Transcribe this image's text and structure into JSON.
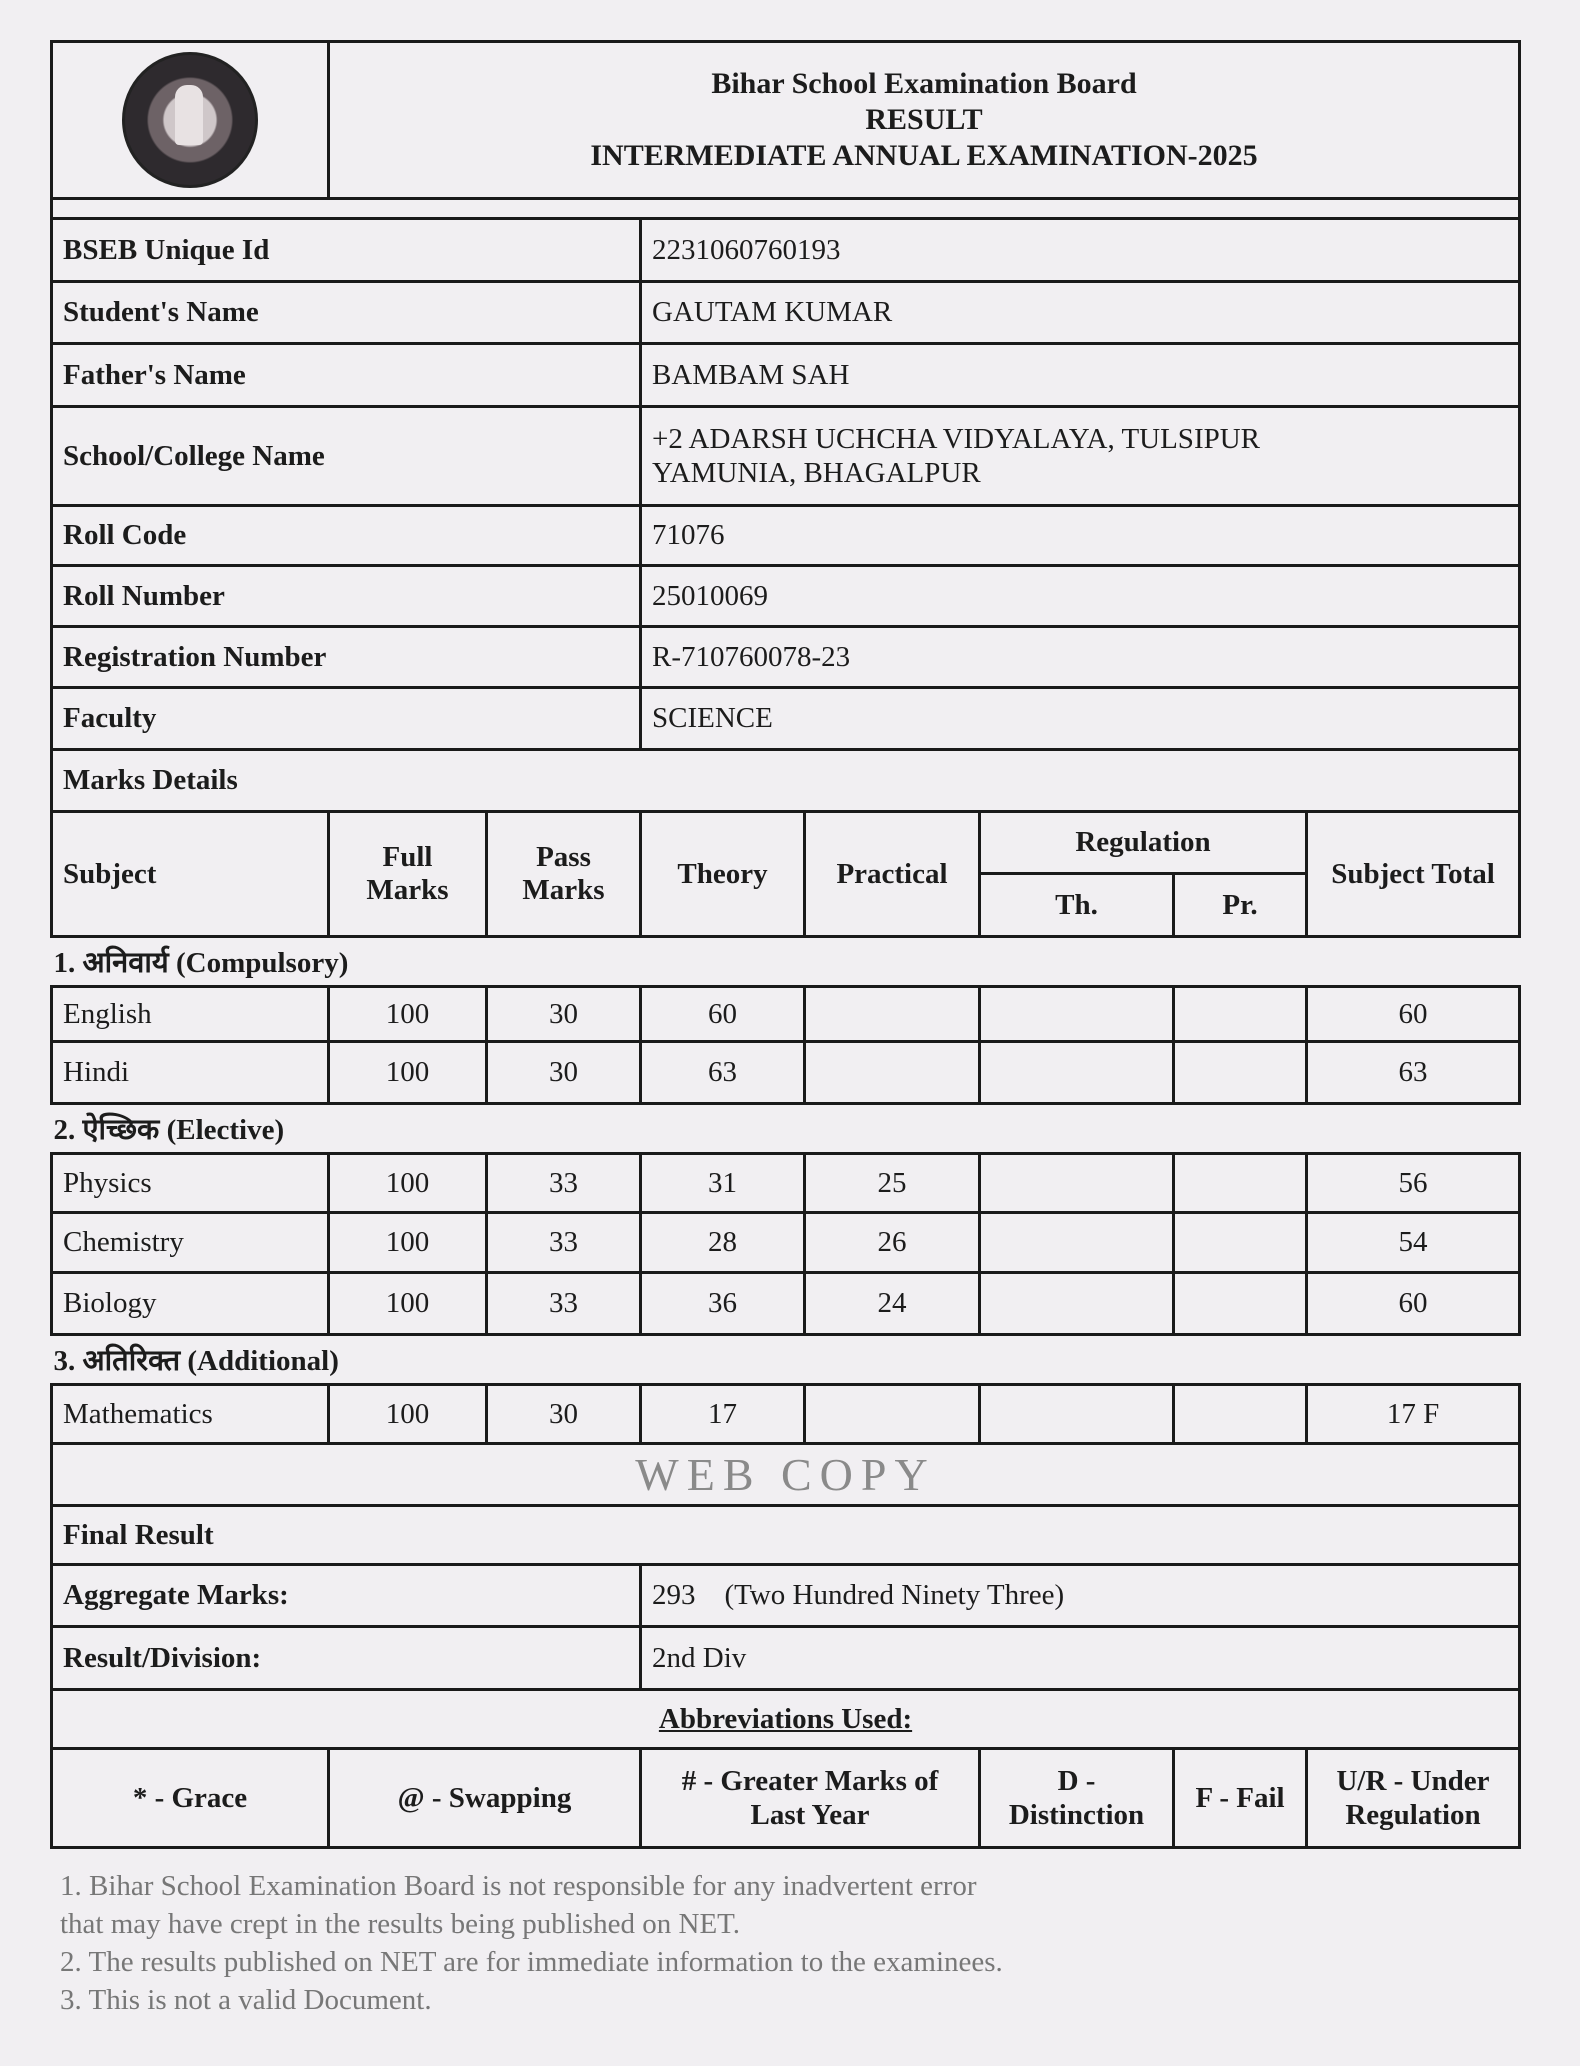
{
  "header": {
    "board": "Bihar School Examination Board",
    "doc_type": "RESULT",
    "exam": "INTERMEDIATE ANNUAL EXAMINATION-2025"
  },
  "student": [
    {
      "label": "BSEB Unique Id",
      "value": "2231060760193"
    },
    {
      "label": "Student's Name",
      "value": "GAUTAM KUMAR"
    },
    {
      "label": "Father's Name",
      "value": "BAMBAM SAH"
    },
    {
      "label": "School/College Name",
      "value": "+2 ADARSH UCHCHA VIDYALAYA, TULSIPUR",
      "value2": "YAMUNIA, BHAGALPUR"
    },
    {
      "label": "Roll Code",
      "value": "71076"
    },
    {
      "label": "Roll Number",
      "value": "25010069"
    },
    {
      "label": "Registration Number",
      "value": "R-710760078-23"
    },
    {
      "label": "Faculty",
      "value": "SCIENCE"
    }
  ],
  "marks": {
    "title": "Marks Details",
    "columns": {
      "subject": "Subject",
      "full": "Full Marks",
      "pass": "Pass Marks",
      "theory": "Theory",
      "practical": "Practical",
      "regulation": "Regulation",
      "reg_th": "Th.",
      "reg_pr": "Pr.",
      "total": "Subject Total"
    },
    "sections": [
      {
        "title": "1. अनिवार्य (Compulsory)",
        "rows": [
          {
            "subject": "English",
            "full": "100",
            "pass": "30",
            "theory": "60",
            "practical": "",
            "reg_th": "",
            "reg_pr": "",
            "total": "60"
          },
          {
            "subject": "Hindi",
            "full": "100",
            "pass": "30",
            "theory": "63",
            "practical": "",
            "reg_th": "",
            "reg_pr": "",
            "total": "63"
          }
        ]
      },
      {
        "title": "2. ऐच्छिक (Elective)",
        "rows": [
          {
            "subject": "Physics",
            "full": "100",
            "pass": "33",
            "theory": "31",
            "practical": "25",
            "reg_th": "",
            "reg_pr": "",
            "total": "56"
          },
          {
            "subject": "Chemistry",
            "full": "100",
            "pass": "33",
            "theory": "28",
            "practical": "26",
            "reg_th": "",
            "reg_pr": "",
            "total": "54"
          },
          {
            "subject": "Biology",
            "full": "100",
            "pass": "33",
            "theory": "36",
            "practical": "24",
            "reg_th": "",
            "reg_pr": "",
            "total": "60"
          }
        ]
      },
      {
        "title": "3. अतिरिक्त (Additional)",
        "rows": [
          {
            "subject": "Mathematics",
            "full": "100",
            "pass": "30",
            "theory": "17",
            "practical": "",
            "reg_th": "",
            "reg_pr": "",
            "total": "17 F"
          }
        ]
      }
    ]
  },
  "final": {
    "title": "Final Result",
    "aggregate_label": "Aggregate Marks:",
    "aggregate_value": "293",
    "aggregate_words": "(Two Hundred Ninety Three)",
    "division_label": "Result/Division:",
    "division_value": "2nd Div"
  },
  "abbreviations": {
    "title": "Abbreviations Used:",
    "items": [
      "* - Grace",
      "@ - Swapping",
      "# - Greater Marks of Last Year",
      "D - Distinction",
      "F - Fail",
      "U/R - Under Regulation"
    ]
  },
  "watermark": {
    "text": "WEB COPY",
    "notes": [
      "1. Bihar School Examination Board is not responsible for any inadvertent error",
      "that may have crept in the results being published on NET.",
      "2. The results published on NET are for immediate information to the examinees.",
      "3. This is not a valid Document."
    ]
  }
}
